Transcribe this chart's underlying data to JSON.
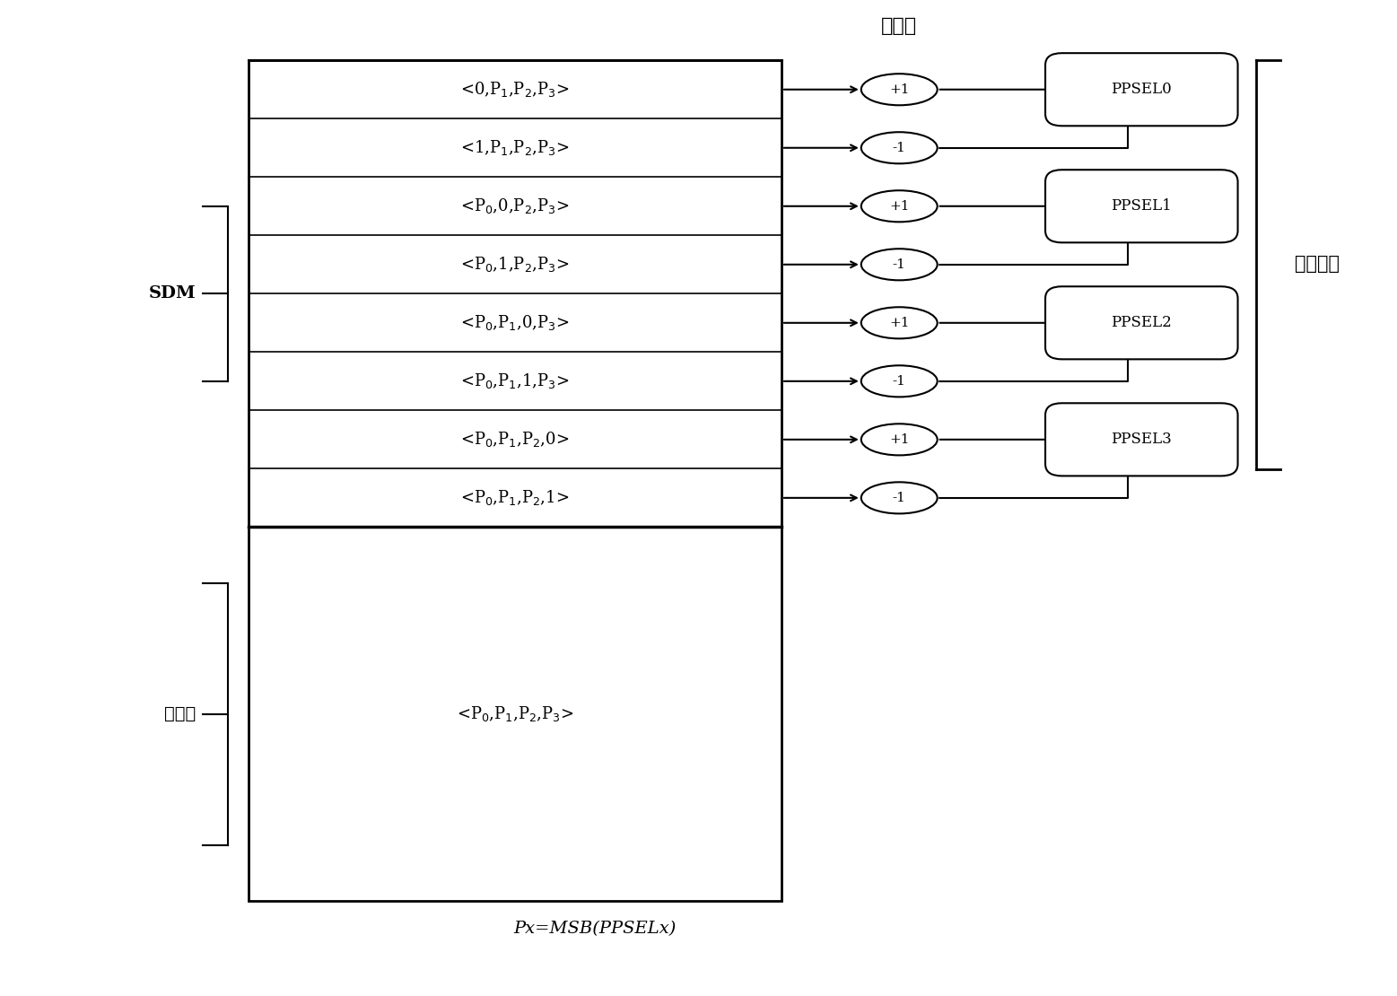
{
  "background_color": "#ffffff",
  "fig_width": 15.57,
  "fig_height": 11.1,
  "sdm_rows": [
    "<0,P$_1$,P$_2$,P$_3$>",
    "<1,P$_1$,P$_2$,P$_3$>",
    "<P$_0$,0,P$_2$,P$_3$>",
    "<P$_0$,1,P$_2$,P$_3$>",
    "<P$_0$,P$_1$,0,P$_3$>",
    "<P$_0$,P$_1$,1,P$_3$>",
    "<P$_0$,P$_1$,P$_2$,0>",
    "<P$_0$,P$_1$,P$_2$,1>"
  ],
  "follower_label": "<P$_0$,P$_1$,P$_2$,P$_3$>",
  "ppsel_labels": [
    "PPSEL0",
    "PPSEL1",
    "PPSEL2",
    "PPSEL3"
  ],
  "circle_labels": [
    "+1",
    "-1",
    "+1",
    "-1",
    "+1",
    "-1",
    "+1",
    "-1"
  ],
  "title_label": "缺失数",
  "sdm_label": "SDM",
  "follower_group_label": "追随组",
  "promotion_label": "提升策略",
  "bottom_formula": "Px=MSB(PPSELx)"
}
